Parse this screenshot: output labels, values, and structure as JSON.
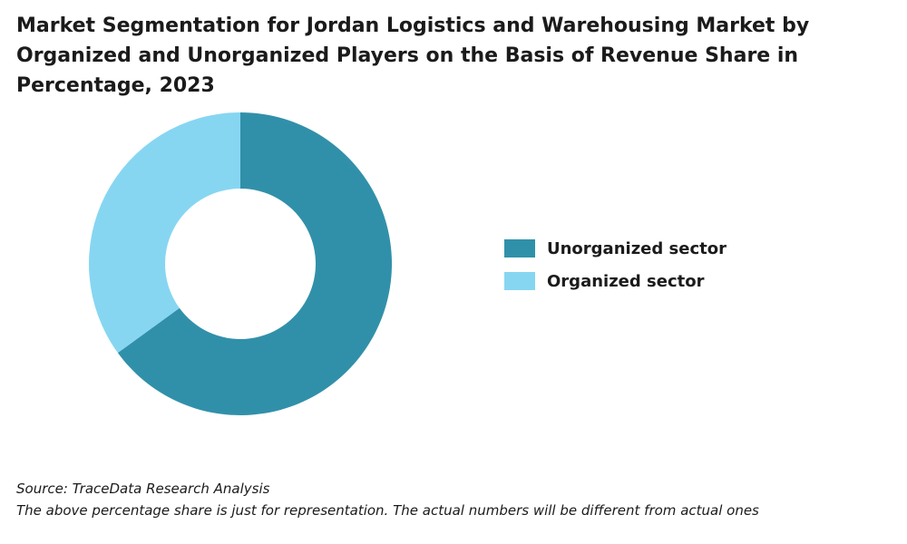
{
  "chart_data": {
    "type": "pie",
    "style": "donut",
    "title": "Market Segmentation for Jordan Logistics and Warehousing Market by Organized and Unorganized Players on the Basis of Revenue Share in Percentage, 2023",
    "categories": [
      "Unorganized sector",
      "Organized sector"
    ],
    "values": [
      65,
      35
    ],
    "colors": [
      "#3190a9",
      "#86d6f2"
    ],
    "legend_position": "right",
    "data_labels": false
  },
  "footer": {
    "source": "Source: TraceData Research Analysis",
    "note": "The above percentage share is just for representation. The actual numbers will be different from actual ones"
  }
}
